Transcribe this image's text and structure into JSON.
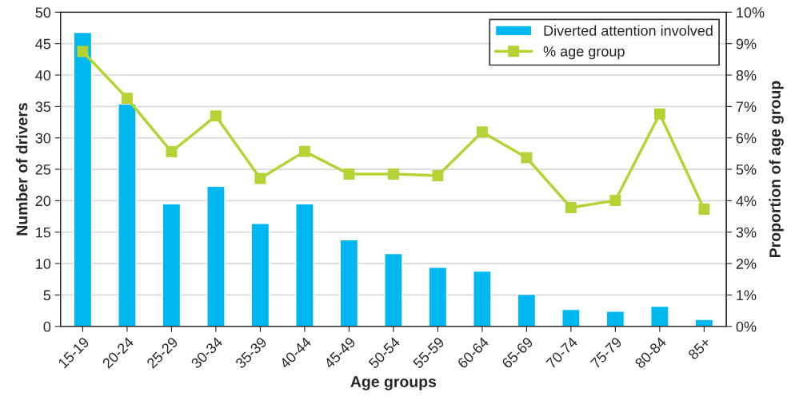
{
  "chart_data": {
    "type": "bar",
    "xlabel": "Age groups",
    "ylabel": "Number of drivers",
    "y2label": "Proportion of age group",
    "categories": [
      "15-19",
      "20-24",
      "25-29",
      "30-34",
      "35-39",
      "40-44",
      "45-49",
      "50-54",
      "55-59",
      "60-64",
      "65-69",
      "70-74",
      "75-79",
      "80-84",
      "85+"
    ],
    "series": [
      {
        "name": "Diverted attention involved",
        "color": "#00b8f0",
        "values": [
          46.8,
          35.4,
          19.5,
          22.3,
          16.4,
          19.5,
          13.8,
          11.6,
          9.4,
          8.8,
          5.1,
          2.7,
          2.4,
          3.2,
          1.1
        ]
      },
      {
        "name": "% age group",
        "type": "line",
        "axis": "y2",
        "color": "#b5d334",
        "marker": "square",
        "values": [
          8.75,
          7.26,
          5.56,
          6.7,
          4.71,
          5.57,
          4.85,
          4.85,
          4.8,
          6.19,
          5.37,
          3.78,
          4.01,
          6.76,
          3.73
        ]
      }
    ],
    "ylim": [
      0,
      50
    ],
    "yticks": [
      0,
      5,
      10,
      15,
      20,
      25,
      30,
      35,
      40,
      45,
      50
    ],
    "y2lim": [
      0,
      10
    ],
    "y2ticks": [
      {
        "value": 0,
        "label": "0%"
      },
      {
        "value": 1,
        "label": "1%"
      },
      {
        "value": 2,
        "label": "2%"
      },
      {
        "value": 3,
        "label": "3%"
      },
      {
        "value": 4,
        "label": "4%"
      },
      {
        "value": 5,
        "label": "5%"
      },
      {
        "value": 6,
        "label": "6%"
      },
      {
        "value": 7,
        "label": "7%"
      },
      {
        "value": 8,
        "label": "8%"
      },
      {
        "value": 9,
        "label": "9%"
      },
      {
        "value": 10,
        "label": "10%"
      }
    ],
    "grid": "y",
    "legend": "top right"
  }
}
